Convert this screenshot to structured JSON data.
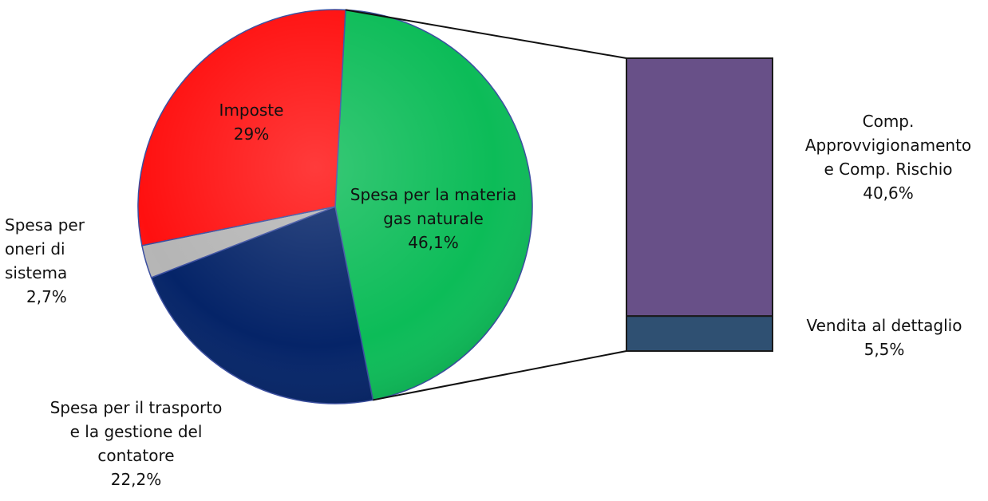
{
  "chart_data": {
    "type": "pie",
    "title": "",
    "slices": [
      {
        "name": "Spesa per la materia gas naturale",
        "value": 46.1,
        "color": "#0cbc58"
      },
      {
        "name": "Spesa per il trasporto e la gestione del contatore",
        "value": 22.2,
        "color": "#052468"
      },
      {
        "name": "Spesa per oneri di sistema",
        "value": 2.7,
        "color": "#b5b5b5"
      },
      {
        "name": "Imposte",
        "value": 29,
        "color": "#ff1010"
      }
    ],
    "breakdown": {
      "of": "Spesa per la materia gas naturale",
      "type": "stacked-bar",
      "segments": [
        {
          "name": "Comp. Approvvigionamento e Comp. Rischio",
          "value": 40.6,
          "color": "#685088"
        },
        {
          "name": "Vendita al dettaglio",
          "value": 5.5,
          "color": "#2f5072"
        }
      ]
    }
  },
  "labels": {
    "materia": [
      "Spesa per la materia",
      "gas naturale",
      "46,1%"
    ],
    "imposte": [
      "Imposte",
      "29%"
    ],
    "oneri": [
      "Spesa per",
      "oneri di",
      "sistema",
      "2,7%"
    ],
    "trasporto": [
      "Spesa per il trasporto",
      "e la gestione del",
      "contatore",
      "22,2%"
    ],
    "approvvigionamento": [
      "Comp.",
      "Approvvigionamento",
      "e  Comp. Rischio",
      "40,6%"
    ],
    "vendita": [
      "Vendita al dettaglio",
      "5,5%"
    ]
  }
}
